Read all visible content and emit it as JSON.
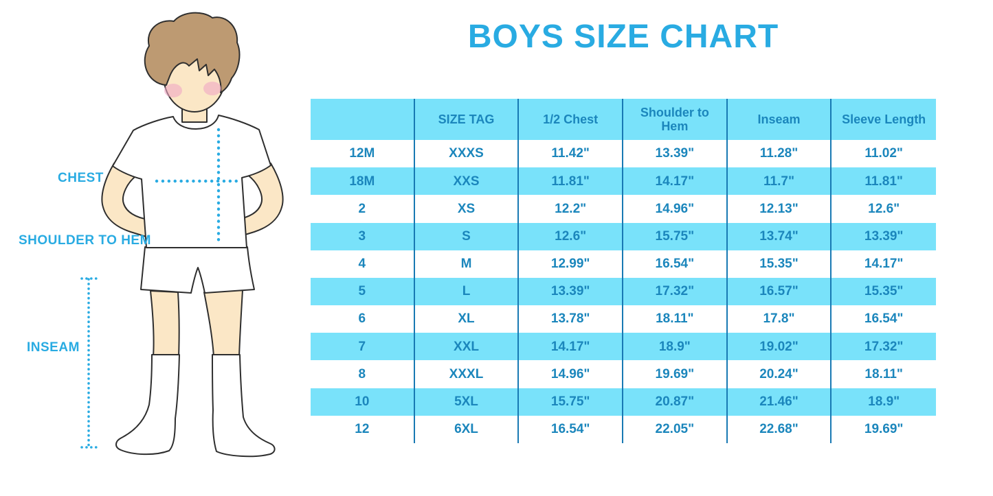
{
  "title": "BOYS SIZE CHART",
  "figure_labels": {
    "chest": "CHEST",
    "shoulder_to_hem": "SHOULDER TO HEM",
    "inseam": "INSEAM"
  },
  "colors": {
    "accent_blue": "#29ABE2",
    "row_cyan": "#79E2FA",
    "table_text": "#1B86BC",
    "divider": "#1879B3",
    "skin": "#FBE7C6",
    "hair": "#BD9A72",
    "outline": "#2E2E2E",
    "blush": "#F0A9C4",
    "white": "#FFFFFF"
  },
  "chart_data": {
    "type": "table",
    "title": "BOYS SIZE CHART",
    "columns": [
      "",
      "SIZE TAG",
      "1/2 Chest",
      "Shoulder to Hem",
      "Inseam",
      "Sleeve Length"
    ],
    "rows": [
      [
        "12M",
        "XXXS",
        "11.42\"",
        "13.39\"",
        "11.28\"",
        "11.02\""
      ],
      [
        "18M",
        "XXS",
        "11.81\"",
        "14.17\"",
        "11.7\"",
        "11.81\""
      ],
      [
        "2",
        "XS",
        "12.2\"",
        "14.96\"",
        "12.13\"",
        "12.6\""
      ],
      [
        "3",
        "S",
        "12.6\"",
        "15.75\"",
        "13.74\"",
        "13.39\""
      ],
      [
        "4",
        "M",
        "12.99\"",
        "16.54\"",
        "15.35\"",
        "14.17\""
      ],
      [
        "5",
        "L",
        "13.39\"",
        "17.32\"",
        "16.57\"",
        "15.35\""
      ],
      [
        "6",
        "XL",
        "13.78\"",
        "18.11\"",
        "17.8\"",
        "16.54\""
      ],
      [
        "7",
        "XXL",
        "14.17\"",
        "18.9\"",
        "19.02\"",
        "17.32\""
      ],
      [
        "8",
        "XXXL",
        "14.96\"",
        "19.69\"",
        "20.24\"",
        "18.11\""
      ],
      [
        "10",
        "5XL",
        "15.75\"",
        "20.87\"",
        "21.46\"",
        "18.9\""
      ],
      [
        "12",
        "6XL",
        "16.54\"",
        "22.05\"",
        "22.68\"",
        "19.69\""
      ]
    ],
    "measurement_labels": [
      "CHEST",
      "SHOULDER TO HEM",
      "INSEAM"
    ],
    "layout_hints": {
      "row_striping": "alternating white / cyan, header cyan",
      "column_dividers": "vertical dark blue lines between all 6 columns",
      "units": "inches"
    }
  }
}
